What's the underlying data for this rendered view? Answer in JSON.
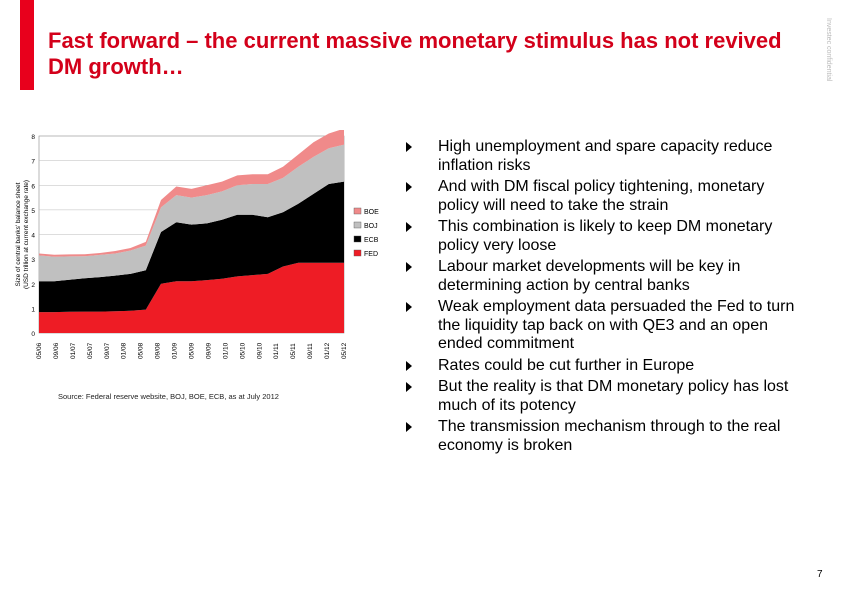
{
  "title": "Fast forward – the current massive monetary stimulus has not revived DM growth…",
  "vertical_note": "Investec confidential",
  "source": "Source: Federal reserve website, BOJ, BOE, ECB, as at July 2012",
  "page_number": "7",
  "bullets": [
    "High unemployment and spare capacity reduce inflation risks",
    "And with DM fiscal policy tightening, monetary policy will need to take the strain",
    "This combination is likely to keep DM monetary policy very loose",
    "Labour market developments will be key in determining action by central banks",
    "Weak employment data persuaded the Fed to turn the liquidity tap back on with QE3 and an open ended commitment",
    "Rates could be cut further in Europe",
    "But the reality is that DM monetary policy has lost much of its potency",
    "The transmission mechanism through to the real economy is broken"
  ],
  "chart_data": {
    "type": "area",
    "stacked": true,
    "ylabel": "Size of central banks' balance sheet (USD trillion at current exchange rate)",
    "ylim": [
      0,
      8
    ],
    "yticks": [
      "0",
      "1",
      "2",
      "3",
      "4",
      "5",
      "6",
      "7",
      "8"
    ],
    "xticks": [
      "05/06",
      "09/06",
      "01/07",
      "05/07",
      "09/07",
      "01/08",
      "05/08",
      "09/08",
      "01/09",
      "05/09",
      "09/09",
      "01/10",
      "05/10",
      "09/10",
      "01/11",
      "05/11",
      "09/11",
      "01/12",
      "05/12"
    ],
    "x": [
      "05/06",
      "09/06",
      "01/07",
      "05/07",
      "09/07",
      "01/08",
      "05/08",
      "09/08",
      "10/08",
      "01/09",
      "05/09",
      "09/09",
      "01/10",
      "05/10",
      "09/10",
      "01/11",
      "05/11",
      "09/11",
      "01/12",
      "05/12",
      "07/12"
    ],
    "series": [
      {
        "name": "FED",
        "color": "#ee1c25",
        "values": [
          0.85,
          0.85,
          0.86,
          0.87,
          0.87,
          0.88,
          0.9,
          0.95,
          2.0,
          2.1,
          2.1,
          2.15,
          2.2,
          2.3,
          2.35,
          2.4,
          2.7,
          2.85,
          2.85,
          2.85,
          2.85
        ]
      },
      {
        "name": "ECB",
        "color": "#000000",
        "values": [
          1.25,
          1.25,
          1.3,
          1.35,
          1.4,
          1.45,
          1.5,
          1.6,
          2.1,
          2.4,
          2.3,
          2.3,
          2.4,
          2.5,
          2.45,
          2.3,
          2.2,
          2.4,
          2.8,
          3.2,
          3.3
        ]
      },
      {
        "name": "BOJ",
        "color": "#c0c0c0",
        "values": [
          1.05,
          1.0,
          0.95,
          0.9,
          0.9,
          0.9,
          0.95,
          1.0,
          1.0,
          1.1,
          1.1,
          1.15,
          1.15,
          1.2,
          1.25,
          1.35,
          1.4,
          1.5,
          1.5,
          1.45,
          1.5
        ]
      },
      {
        "name": "BOE",
        "color": "#f08a8a",
        "values": [
          0.08,
          0.08,
          0.08,
          0.08,
          0.08,
          0.1,
          0.1,
          0.15,
          0.3,
          0.35,
          0.35,
          0.4,
          0.4,
          0.4,
          0.4,
          0.4,
          0.45,
          0.5,
          0.6,
          0.6,
          0.65
        ]
      }
    ],
    "legend": [
      "BOE",
      "BOJ",
      "ECB",
      "FED"
    ],
    "legend_position": "right",
    "grid": true
  }
}
